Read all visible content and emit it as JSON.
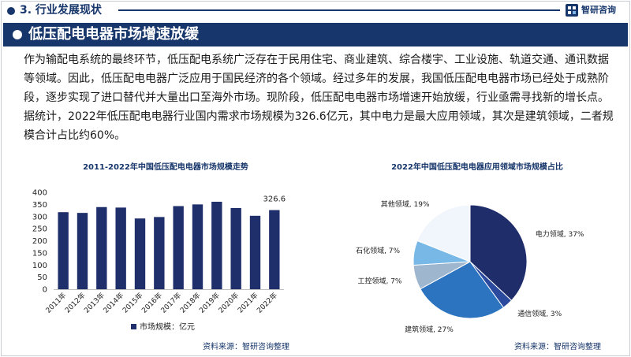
{
  "header": {
    "section_title": "3. 行业发展现状",
    "logo_text": "智研咨询"
  },
  "headline": "低压配电电器市场增速放缓",
  "body_text": "作为输配电系统的最终环节，低压配电系统广泛存在于民用住宅、商业建筑、综合楼宇、工业设施、轨道交通、通讯数据等领域。因此，低压配电电器广泛应用于国民经济的各个领域。经过多年的发展，我国低压配电电器市场已经处于成熟阶段，逐步实现了进口替代并大量出口至海外市场。现阶段，低压配电电器市场增速开始放缓，行业亟需寻找新的增长点。据统计，2022年低压配电电器行业国内需求市场规模为326.6亿元，其中电力是最大应用领域，其次是建筑领域，二者规模合计占比约60%。",
  "source_left": "资料来源：智研咨询整理",
  "source_right": "资料来源：智研咨询整理",
  "colors": {
    "brand_navy": "#17366b",
    "bar": "#1f2f6b"
  },
  "chart_data": [
    {
      "type": "bar",
      "title": "2011-2022年中国低压配电电器市场规模走势",
      "categories": [
        "2011年",
        "2012年",
        "2013年",
        "2014年",
        "2015年",
        "2016年",
        "2017年",
        "2018年",
        "2019年",
        "2020年",
        "2021年",
        "2022年"
      ],
      "series": [
        {
          "name": "市场规模：亿元",
          "values": [
            318,
            315,
            339,
            337,
            292,
            298,
            343,
            350,
            361,
            335,
            303,
            326.6
          ]
        }
      ],
      "data_labels": {
        "2022年": "326.6"
      },
      "y_ticks": [
        "0",
        "50",
        "100",
        "150",
        "200",
        "250",
        "300",
        "350",
        "400"
      ],
      "ylim": [
        0,
        400
      ],
      "grid": false,
      "legend": "bottom"
    },
    {
      "type": "pie",
      "title": "2022年中国低压配电电器应用领域市场规模占比",
      "slices": [
        {
          "name": "电力领域",
          "value": 37,
          "label": "电力领域, 37%",
          "color": "#1f2d6b"
        },
        {
          "name": "通信领域",
          "value": 3,
          "label": "通信领域, 3%",
          "color": "#2b4a9e"
        },
        {
          "name": "建筑领域",
          "value": 27,
          "label": "建筑领域, 27%",
          "color": "#2c73c0"
        },
        {
          "name": "工控领域",
          "value": 7,
          "label": "工控领域, 7%",
          "color": "#9fb6cf"
        },
        {
          "name": "石化领域",
          "value": 7,
          "label": "石化领域, 7%",
          "color": "#77b8e6"
        },
        {
          "name": "其他领域",
          "value": 19,
          "label": "其他领域, 19%",
          "color": "#f1f6fc"
        }
      ]
    }
  ]
}
